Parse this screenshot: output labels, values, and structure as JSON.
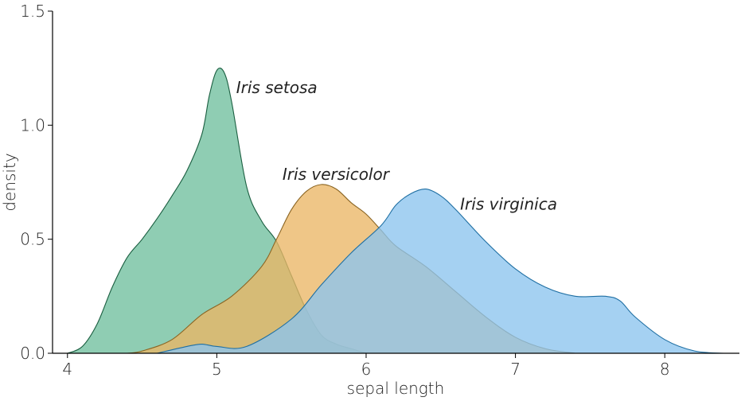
{
  "chart_data": {
    "type": "area",
    "xlabel": "sepal length",
    "ylabel": "density",
    "xlim": [
      3.9,
      8.5
    ],
    "ylim": [
      0,
      1.5
    ],
    "xticks": [
      4,
      5,
      6,
      7,
      8
    ],
    "xtick_labels": [
      "4",
      "5",
      "6",
      "7",
      "8"
    ],
    "yticks": [
      0.0,
      0.5,
      1.0,
      1.5
    ],
    "ytick_labels": [
      "0.0",
      "0.5",
      "1.0",
      "1.5"
    ],
    "grid": false,
    "series": [
      {
        "name": "Iris setosa",
        "fill": "#6fbf9e",
        "stroke": "#1a5e40",
        "x": [
          4.0,
          4.1,
          4.2,
          4.3,
          4.4,
          4.5,
          4.6,
          4.7,
          4.8,
          4.9,
          4.95,
          5.0,
          5.05,
          5.1,
          5.2,
          5.3,
          5.4,
          5.5,
          5.6,
          5.7,
          5.8,
          5.9,
          6.0
        ],
        "y": [
          0.0,
          0.03,
          0.13,
          0.29,
          0.42,
          0.5,
          0.59,
          0.69,
          0.8,
          0.96,
          1.13,
          1.24,
          1.23,
          1.1,
          0.73,
          0.58,
          0.49,
          0.34,
          0.19,
          0.08,
          0.04,
          0.02,
          0.0
        ]
      },
      {
        "name": "Iris versicolor",
        "fill": "#ebb665",
        "stroke": "#8a6422",
        "x": [
          4.4,
          4.5,
          4.7,
          4.9,
          5.1,
          5.3,
          5.4,
          5.5,
          5.6,
          5.7,
          5.8,
          5.9,
          6.0,
          6.1,
          6.2,
          6.4,
          6.6,
          6.8,
          7.0,
          7.2,
          7.4
        ],
        "y": [
          0.0,
          0.01,
          0.06,
          0.17,
          0.25,
          0.38,
          0.5,
          0.63,
          0.71,
          0.74,
          0.72,
          0.66,
          0.61,
          0.54,
          0.47,
          0.38,
          0.27,
          0.16,
          0.07,
          0.02,
          0.0
        ]
      },
      {
        "name": "Iris virginica",
        "fill": "#8cc4ee",
        "stroke": "#1f6fa3",
        "x": [
          4.6,
          4.8,
          4.9,
          5.0,
          5.2,
          5.5,
          5.7,
          5.9,
          6.1,
          6.2,
          6.3,
          6.4,
          6.5,
          6.6,
          6.8,
          7.0,
          7.2,
          7.4,
          7.6,
          7.7,
          7.8,
          8.0,
          8.2,
          8.4
        ],
        "y": [
          0.0,
          0.03,
          0.04,
          0.03,
          0.03,
          0.15,
          0.3,
          0.44,
          0.56,
          0.65,
          0.7,
          0.72,
          0.69,
          0.63,
          0.49,
          0.37,
          0.29,
          0.25,
          0.25,
          0.23,
          0.16,
          0.06,
          0.01,
          0.0
        ]
      }
    ],
    "annotations": [
      {
        "text": "Iris setosa",
        "x": 5.13,
        "y": 1.14
      },
      {
        "text": "Iris versicolor",
        "x": 5.44,
        "y": 0.76
      },
      {
        "text": "Iris virginica",
        "x": 6.63,
        "y": 0.63
      }
    ]
  }
}
